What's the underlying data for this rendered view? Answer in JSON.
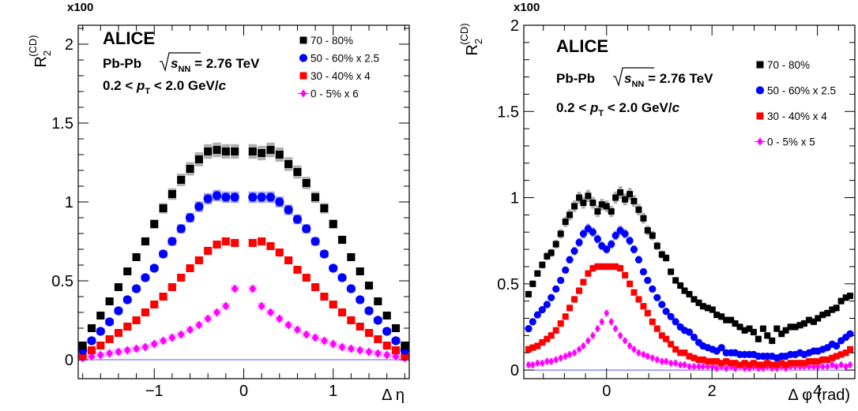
{
  "chart_data": [
    {
      "type": "scatter",
      "id": "deta",
      "multiplier_label": "x100",
      "y_label": {
        "main": "R",
        "sub": "2",
        "sup": "(CD)"
      },
      "x_label": "Δ η",
      "xlim": [
        -1.85,
        1.85
      ],
      "ylim": [
        -0.12,
        2.12
      ],
      "xticks": [
        -1,
        0,
        1
      ],
      "xtick_labels": [
        "−1",
        "0",
        "1"
      ],
      "yticks": [
        0,
        0.5,
        1,
        1.5,
        2
      ],
      "ytick_labels": [
        "0",
        "0.5",
        "1",
        "1.5",
        "2"
      ],
      "experiment": "ALICE",
      "system": "Pb-Pb",
      "energy_sym": "s",
      "energy_sub": "NN",
      "energy_value": " = 2.76 TeV",
      "pt_pre": "0.2 < ",
      "pt_sym": "p",
      "pt_sub": "T",
      "pt_post": " < 2.0 GeV/",
      "pt_unit": "c",
      "legend_placement": "top-right",
      "series": [
        {
          "name": "70 - 80%",
          "marker": "square",
          "color": "#000000",
          "band": "#b0b0b0",
          "x": [
            -1.8,
            -1.7,
            -1.6,
            -1.5,
            -1.4,
            -1.3,
            -1.2,
            -1.1,
            -1.0,
            -0.9,
            -0.8,
            -0.7,
            -0.6,
            -0.5,
            -0.4,
            -0.3,
            -0.2,
            -0.1,
            0.1,
            0.2,
            0.3,
            0.4,
            0.5,
            0.6,
            0.7,
            0.8,
            0.9,
            1.0,
            1.1,
            1.2,
            1.3,
            1.4,
            1.5,
            1.6,
            1.7,
            1.8
          ],
          "y": [
            0.09,
            0.2,
            0.28,
            0.37,
            0.46,
            0.56,
            0.65,
            0.75,
            0.86,
            0.96,
            1.05,
            1.14,
            1.21,
            1.27,
            1.32,
            1.33,
            1.32,
            1.32,
            1.32,
            1.31,
            1.33,
            1.3,
            1.24,
            1.19,
            1.12,
            1.03,
            0.96,
            0.86,
            0.76,
            0.65,
            0.56,
            0.47,
            0.37,
            0.28,
            0.2,
            0.09
          ]
        },
        {
          "name": "50 - 60% x 2.5",
          "marker": "circle",
          "color": "#0000ff",
          "band": "#9fa0ff",
          "x": [
            -1.8,
            -1.7,
            -1.6,
            -1.5,
            -1.4,
            -1.3,
            -1.2,
            -1.1,
            -1.0,
            -0.9,
            -0.8,
            -0.7,
            -0.6,
            -0.5,
            -0.4,
            -0.3,
            -0.2,
            -0.1,
            0.1,
            0.2,
            0.3,
            0.4,
            0.5,
            0.6,
            0.7,
            0.8,
            0.9,
            1.0,
            1.1,
            1.2,
            1.3,
            1.4,
            1.5,
            1.6,
            1.7,
            1.8
          ],
          "y": [
            0.06,
            0.12,
            0.18,
            0.24,
            0.31,
            0.38,
            0.45,
            0.52,
            0.58,
            0.67,
            0.75,
            0.83,
            0.9,
            0.97,
            1.02,
            1.04,
            1.03,
            1.03,
            1.03,
            1.03,
            1.03,
            1.0,
            0.95,
            0.89,
            0.83,
            0.75,
            0.67,
            0.58,
            0.52,
            0.45,
            0.38,
            0.31,
            0.25,
            0.18,
            0.12,
            0.06
          ]
        },
        {
          "name": "30 - 40% x 4",
          "marker": "square",
          "color": "#ff0000",
          "band": "#ff9f9f",
          "x": [
            -1.8,
            -1.7,
            -1.6,
            -1.5,
            -1.4,
            -1.3,
            -1.2,
            -1.1,
            -1.0,
            -0.9,
            -0.8,
            -0.7,
            -0.6,
            -0.5,
            -0.4,
            -0.3,
            -0.2,
            -0.1,
            0.1,
            0.2,
            0.3,
            0.4,
            0.5,
            0.6,
            0.7,
            0.8,
            0.9,
            1.0,
            1.1,
            1.2,
            1.3,
            1.4,
            1.5,
            1.6,
            1.7,
            1.8
          ],
          "y": [
            0.03,
            0.06,
            0.09,
            0.13,
            0.17,
            0.21,
            0.25,
            0.3,
            0.35,
            0.4,
            0.46,
            0.52,
            0.58,
            0.63,
            0.69,
            0.73,
            0.75,
            0.74,
            0.74,
            0.75,
            0.72,
            0.68,
            0.63,
            0.57,
            0.52,
            0.46,
            0.4,
            0.35,
            0.3,
            0.25,
            0.21,
            0.17,
            0.13,
            0.09,
            0.06,
            0.03
          ]
        },
        {
          "name": "0 - 5% x 6",
          "marker": "diamond",
          "color": "#ff00ff",
          "band": "#ffb0ff",
          "x": [
            -1.8,
            -1.7,
            -1.6,
            -1.5,
            -1.4,
            -1.3,
            -1.2,
            -1.1,
            -1.0,
            -0.9,
            -0.8,
            -0.7,
            -0.6,
            -0.5,
            -0.4,
            -0.3,
            -0.2,
            -0.1,
            0.1,
            0.2,
            0.3,
            0.4,
            0.5,
            0.6,
            0.7,
            0.8,
            0.9,
            1.0,
            1.1,
            1.2,
            1.3,
            1.4,
            1.5,
            1.6,
            1.7,
            1.8
          ],
          "y": [
            0.01,
            0.02,
            0.03,
            0.04,
            0.05,
            0.06,
            0.07,
            0.08,
            0.1,
            0.12,
            0.14,
            0.16,
            0.19,
            0.22,
            0.26,
            0.3,
            0.34,
            0.45,
            0.45,
            0.34,
            0.3,
            0.26,
            0.22,
            0.19,
            0.16,
            0.14,
            0.12,
            0.1,
            0.08,
            0.07,
            0.06,
            0.05,
            0.04,
            0.03,
            0.02,
            0.01
          ]
        }
      ]
    },
    {
      "type": "scatter",
      "id": "dphi",
      "multiplier_label": "x100",
      "y_label": {
        "main": "R",
        "sub": "2",
        "sup": "(CD)"
      },
      "x_label": "Δ φ (rad)",
      "xlim": [
        -1.57,
        4.71
      ],
      "ylim": [
        -0.05,
        2.0
      ],
      "xticks": [
        0,
        2,
        4
      ],
      "xtick_labels": [
        "0",
        "2",
        "4"
      ],
      "yticks": [
        0,
        0.5,
        1,
        1.5,
        2
      ],
      "ytick_labels": [
        "0",
        "0.5",
        "1",
        "1.5",
        "2"
      ],
      "experiment": "ALICE",
      "system": "Pb-Pb",
      "energy_sym": "s",
      "energy_sub": "NN",
      "energy_value": " = 2.76 TeV",
      "pt_pre": "0.2 < ",
      "pt_sym": "p",
      "pt_sub": "T",
      "pt_post": " < 2.0 GeV/",
      "pt_unit": "c",
      "legend_placement": "right",
      "series": [
        {
          "name": "70 - 80%",
          "marker": "square",
          "color": "#000000",
          "band": "#b0b0b0",
          "x": [
            -1.48,
            -1.4,
            -1.31,
            -1.22,
            -1.13,
            -1.05,
            -0.96,
            -0.87,
            -0.78,
            -0.7,
            -0.61,
            -0.52,
            -0.44,
            -0.35,
            -0.26,
            -0.17,
            -0.09,
            0.0,
            0.09,
            0.17,
            0.26,
            0.35,
            0.44,
            0.52,
            0.61,
            0.7,
            0.78,
            0.87,
            0.96,
            1.05,
            1.13,
            1.22,
            1.31,
            1.4,
            1.48,
            1.57,
            1.66,
            1.75,
            1.83,
            1.92,
            2.01,
            2.09,
            2.18,
            2.27,
            2.36,
            2.44,
            2.53,
            2.62,
            2.71,
            2.79,
            2.88,
            2.97,
            3.05,
            3.14,
            3.23,
            3.32,
            3.4,
            3.49,
            3.58,
            3.67,
            3.75,
            3.84,
            3.93,
            4.01,
            4.1,
            4.19,
            4.28,
            4.36,
            4.45,
            4.54,
            4.62
          ],
          "y": [
            0.44,
            0.5,
            0.56,
            0.61,
            0.66,
            0.68,
            0.73,
            0.79,
            0.86,
            0.9,
            0.95,
            1.0,
            0.97,
            1.01,
            0.97,
            0.92,
            0.96,
            0.95,
            0.92,
            1.0,
            1.03,
            0.99,
            1.02,
            0.98,
            0.93,
            0.88,
            0.81,
            0.78,
            0.72,
            0.67,
            0.65,
            0.57,
            0.52,
            0.49,
            0.46,
            0.44,
            0.41,
            0.39,
            0.37,
            0.36,
            0.35,
            0.32,
            0.31,
            0.29,
            0.29,
            0.27,
            0.25,
            0.23,
            0.24,
            0.22,
            0.18,
            0.24,
            0.2,
            0.17,
            0.24,
            0.21,
            0.23,
            0.25,
            0.25,
            0.26,
            0.27,
            0.29,
            0.28,
            0.3,
            0.32,
            0.33,
            0.35,
            0.36,
            0.4,
            0.42,
            0.43
          ]
        },
        {
          "name": "50 - 60% x 2.5",
          "marker": "circle",
          "color": "#0000ff",
          "band": "#9fa0ff",
          "x": [
            -1.48,
            -1.4,
            -1.31,
            -1.22,
            -1.13,
            -1.05,
            -0.96,
            -0.87,
            -0.78,
            -0.7,
            -0.61,
            -0.52,
            -0.44,
            -0.35,
            -0.26,
            -0.17,
            -0.09,
            0.0,
            0.09,
            0.17,
            0.26,
            0.35,
            0.44,
            0.52,
            0.61,
            0.7,
            0.78,
            0.87,
            0.96,
            1.05,
            1.13,
            1.22,
            1.31,
            1.4,
            1.48,
            1.57,
            1.66,
            1.75,
            1.83,
            1.92,
            2.01,
            2.09,
            2.18,
            2.27,
            2.36,
            2.44,
            2.53,
            2.62,
            2.71,
            2.79,
            2.88,
            2.97,
            3.05,
            3.14,
            3.23,
            3.32,
            3.4,
            3.49,
            3.58,
            3.67,
            3.75,
            3.84,
            3.93,
            4.01,
            4.1,
            4.19,
            4.28,
            4.36,
            4.45,
            4.54,
            4.62
          ],
          "y": [
            0.24,
            0.28,
            0.32,
            0.35,
            0.38,
            0.42,
            0.47,
            0.52,
            0.58,
            0.64,
            0.69,
            0.74,
            0.79,
            0.82,
            0.8,
            0.76,
            0.72,
            0.7,
            0.73,
            0.78,
            0.81,
            0.79,
            0.75,
            0.7,
            0.64,
            0.57,
            0.52,
            0.47,
            0.42,
            0.38,
            0.34,
            0.31,
            0.28,
            0.25,
            0.23,
            0.22,
            0.19,
            0.16,
            0.14,
            0.13,
            0.12,
            0.11,
            0.13,
            0.1,
            0.1,
            0.1,
            0.09,
            0.09,
            0.09,
            0.09,
            0.08,
            0.08,
            0.08,
            0.08,
            0.07,
            0.08,
            0.08,
            0.09,
            0.09,
            0.1,
            0.09,
            0.1,
            0.11,
            0.11,
            0.12,
            0.13,
            0.15,
            0.14,
            0.17,
            0.19,
            0.21
          ]
        },
        {
          "name": "30 - 40% x 4",
          "marker": "square",
          "color": "#ff0000",
          "band": "#ff9f9f",
          "x": [
            -1.48,
            -1.4,
            -1.31,
            -1.22,
            -1.13,
            -1.05,
            -0.96,
            -0.87,
            -0.78,
            -0.7,
            -0.61,
            -0.52,
            -0.44,
            -0.35,
            -0.26,
            -0.17,
            -0.09,
            0.0,
            0.09,
            0.17,
            0.26,
            0.35,
            0.44,
            0.52,
            0.61,
            0.7,
            0.78,
            0.87,
            0.96,
            1.05,
            1.13,
            1.22,
            1.31,
            1.4,
            1.48,
            1.57,
            1.66,
            1.75,
            1.83,
            1.92,
            2.01,
            2.09,
            2.18,
            2.27,
            2.36,
            2.44,
            2.53,
            2.62,
            2.71,
            2.79,
            2.88,
            2.97,
            3.05,
            3.14,
            3.23,
            3.32,
            3.4,
            3.49,
            3.58,
            3.67,
            3.75,
            3.84,
            3.93,
            4.01,
            4.1,
            4.19,
            4.28,
            4.36,
            4.45,
            4.54,
            4.62
          ],
          "y": [
            0.12,
            0.13,
            0.14,
            0.16,
            0.18,
            0.2,
            0.23,
            0.27,
            0.31,
            0.36,
            0.41,
            0.46,
            0.51,
            0.56,
            0.59,
            0.6,
            0.6,
            0.6,
            0.6,
            0.6,
            0.59,
            0.55,
            0.5,
            0.45,
            0.41,
            0.37,
            0.33,
            0.28,
            0.24,
            0.2,
            0.18,
            0.15,
            0.12,
            0.1,
            0.1,
            0.08,
            0.07,
            0.06,
            0.06,
            0.05,
            0.05,
            0.05,
            0.04,
            0.05,
            0.04,
            0.04,
            0.03,
            0.04,
            0.03,
            0.04,
            0.03,
            0.03,
            0.04,
            0.03,
            0.03,
            0.04,
            0.03,
            0.04,
            0.04,
            0.04,
            0.04,
            0.05,
            0.05,
            0.05,
            0.06,
            0.06,
            0.07,
            0.08,
            0.09,
            0.1,
            0.12
          ]
        },
        {
          "name": "0 - 5% x 5",
          "marker": "diamond",
          "color": "#ff00ff",
          "band": "#ffb0ff",
          "x": [
            -1.48,
            -1.4,
            -1.31,
            -1.22,
            -1.13,
            -1.05,
            -0.96,
            -0.87,
            -0.78,
            -0.7,
            -0.61,
            -0.52,
            -0.44,
            -0.35,
            -0.26,
            -0.17,
            -0.09,
            0.0,
            0.09,
            0.17,
            0.26,
            0.35,
            0.44,
            0.52,
            0.61,
            0.7,
            0.78,
            0.87,
            0.96,
            1.05,
            1.13,
            1.22,
            1.31,
            1.4,
            1.48,
            1.57,
            1.66,
            1.75,
            1.83,
            1.92,
            2.01,
            2.09,
            2.18,
            2.27,
            2.36,
            2.44,
            2.53,
            2.62,
            2.71,
            2.79,
            2.88,
            2.97,
            3.05,
            3.14,
            3.23,
            3.32,
            3.4,
            3.49,
            3.58,
            3.67,
            3.75,
            3.84,
            3.93,
            4.01,
            4.1,
            4.19,
            4.28,
            4.36,
            4.45,
            4.54,
            4.62
          ],
          "y": [
            0.03,
            0.03,
            0.04,
            0.04,
            0.05,
            0.05,
            0.06,
            0.07,
            0.08,
            0.09,
            0.1,
            0.12,
            0.14,
            0.17,
            0.2,
            0.24,
            0.28,
            0.33,
            0.28,
            0.24,
            0.2,
            0.17,
            0.14,
            0.12,
            0.1,
            0.09,
            0.08,
            0.07,
            0.06,
            0.05,
            0.05,
            0.04,
            0.04,
            0.03,
            0.03,
            0.02,
            0.02,
            0.02,
            0.02,
            0.02,
            0.02,
            0.01,
            0.02,
            0.01,
            0.02,
            0.01,
            0.02,
            0.01,
            0.01,
            0.02,
            0.01,
            0.01,
            0.02,
            0.01,
            0.01,
            0.02,
            0.01,
            0.02,
            0.02,
            0.02,
            0.02,
            0.02,
            0.02,
            0.02,
            0.02,
            0.02,
            0.03,
            0.02,
            0.03,
            0.02,
            0.03
          ]
        }
      ]
    }
  ]
}
